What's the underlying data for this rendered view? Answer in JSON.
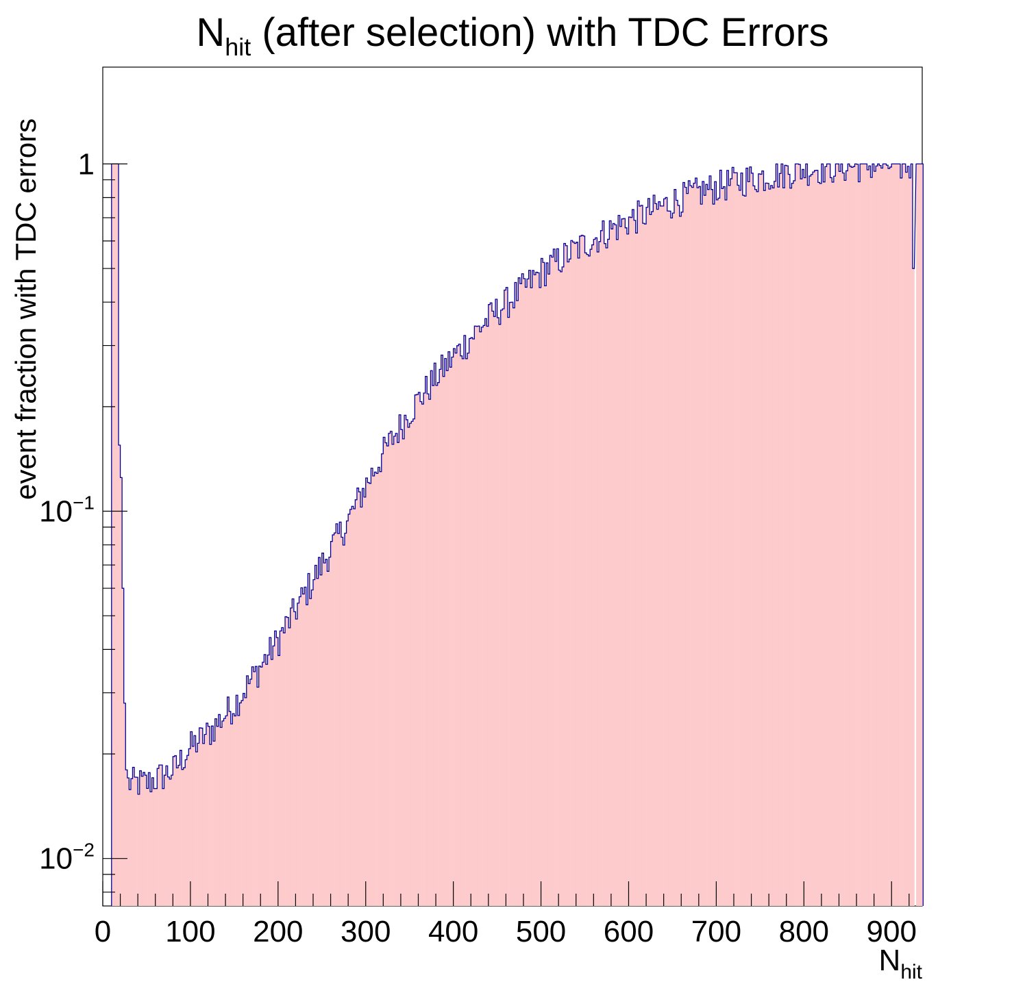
{
  "title": {
    "main": "N",
    "sub": "hit",
    "rest": " (after selection) with TDC Errors"
  },
  "axes": {
    "xlabel_main": "N",
    "xlabel_sub": "hit",
    "ylabel": "event fraction with TDC errors"
  },
  "colors": {
    "fill": "#fdcbcc",
    "line": "#000099",
    "axis": "#000000"
  },
  "chart_data": {
    "type": "bar",
    "style": "histogram",
    "x_range": [
      0,
      935
    ],
    "y_scale": "log",
    "y_range": [
      0.0073,
      1.9
    ],
    "x_ticks": [
      0,
      100,
      200,
      300,
      400,
      500,
      600,
      700,
      800,
      900
    ],
    "y_ticks": [
      {
        "value": 1,
        "label": "1"
      },
      {
        "value": 0.1,
        "label": "10^-1",
        "base": "10",
        "exp": "−1"
      },
      {
        "value": 0.01,
        "label": "10^-2",
        "base": "10",
        "exp": "−2"
      }
    ],
    "grid": false,
    "legend": "none",
    "bin_width": 2,
    "spikes": [
      {
        "x": 10,
        "y": 1.0
      },
      {
        "x": 12,
        "y": 1.0
      },
      {
        "x": 14,
        "y": 1.0
      },
      {
        "x": 16,
        "y": 1.0
      },
      {
        "x": 18,
        "y": 0.155
      },
      {
        "x": 20,
        "y": 0.125
      },
      {
        "x": 22,
        "y": 0.06
      },
      {
        "x": 24,
        "y": 0.028
      },
      {
        "x": 26,
        "y": 0.018
      }
    ],
    "trend_points": [
      [
        28,
        0.0165
      ],
      [
        50,
        0.0165
      ],
      [
        80,
        0.018
      ],
      [
        100,
        0.021
      ],
      [
        120,
        0.023
      ],
      [
        150,
        0.028
      ],
      [
        180,
        0.036
      ],
      [
        200,
        0.043
      ],
      [
        230,
        0.058
      ],
      [
        250,
        0.071
      ],
      [
        280,
        0.095
      ],
      [
        300,
        0.12
      ],
      [
        320,
        0.148
      ],
      [
        350,
        0.195
      ],
      [
        380,
        0.245
      ],
      [
        400,
        0.28
      ],
      [
        430,
        0.34
      ],
      [
        450,
        0.38
      ],
      [
        480,
        0.44
      ],
      [
        500,
        0.49
      ],
      [
        530,
        0.55
      ],
      [
        550,
        0.59
      ],
      [
        580,
        0.65
      ],
      [
        600,
        0.69
      ],
      [
        630,
        0.74
      ],
      [
        650,
        0.78
      ],
      [
        680,
        0.83
      ],
      [
        700,
        0.86
      ],
      [
        730,
        0.9
      ],
      [
        750,
        0.92
      ],
      [
        780,
        0.95
      ],
      [
        800,
        0.97
      ],
      [
        830,
        0.98
      ],
      [
        860,
        0.99
      ],
      [
        900,
        0.995
      ],
      [
        925,
        0.99
      ]
    ],
    "noise_level": 0.11,
    "tail": [
      {
        "x": 924,
        "y": 0.5
      },
      {
        "x": 928,
        "y": 1.0
      },
      {
        "x": 930,
        "y": 1.0
      },
      {
        "x": 932,
        "y": 1.0
      },
      {
        "x": 934,
        "y": 1.0
      }
    ]
  }
}
